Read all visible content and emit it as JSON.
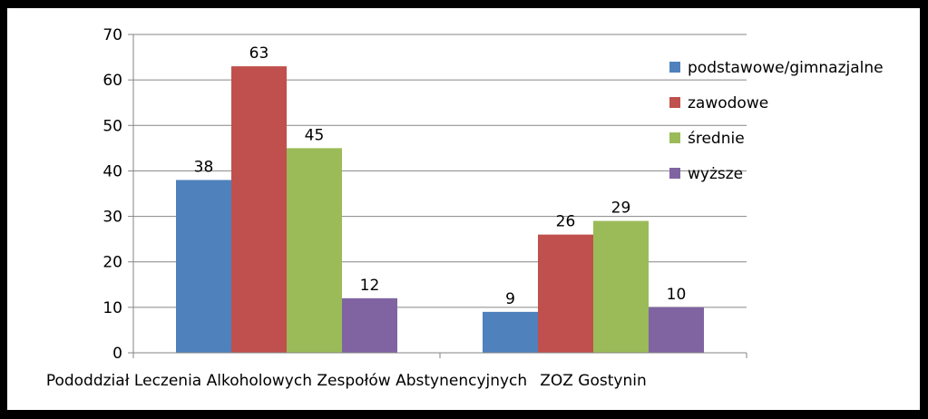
{
  "chart_data": {
    "type": "bar",
    "categories": [
      "Pododdział Leczenia Alkoholowych Zespołów Abstynencyjnych",
      "ZOZ Gostynin"
    ],
    "series": [
      {
        "name": "podstawowe/gimnazjalne",
        "color": "#4F81BD",
        "values": [
          38,
          9
        ]
      },
      {
        "name": "zawodowe",
        "color": "#C0504D",
        "values": [
          63,
          26
        ]
      },
      {
        "name": "średnie",
        "color": "#9BBB59",
        "values": [
          45,
          29
        ]
      },
      {
        "name": "wyższe",
        "color": "#8064A2",
        "values": [
          12,
          10
        ]
      }
    ],
    "ylim": [
      0,
      70
    ],
    "yticks": [
      0,
      10,
      20,
      30,
      40,
      50,
      60,
      70
    ],
    "grid": true,
    "legend": "right",
    "title": "",
    "xlabel": "",
    "ylabel": ""
  }
}
